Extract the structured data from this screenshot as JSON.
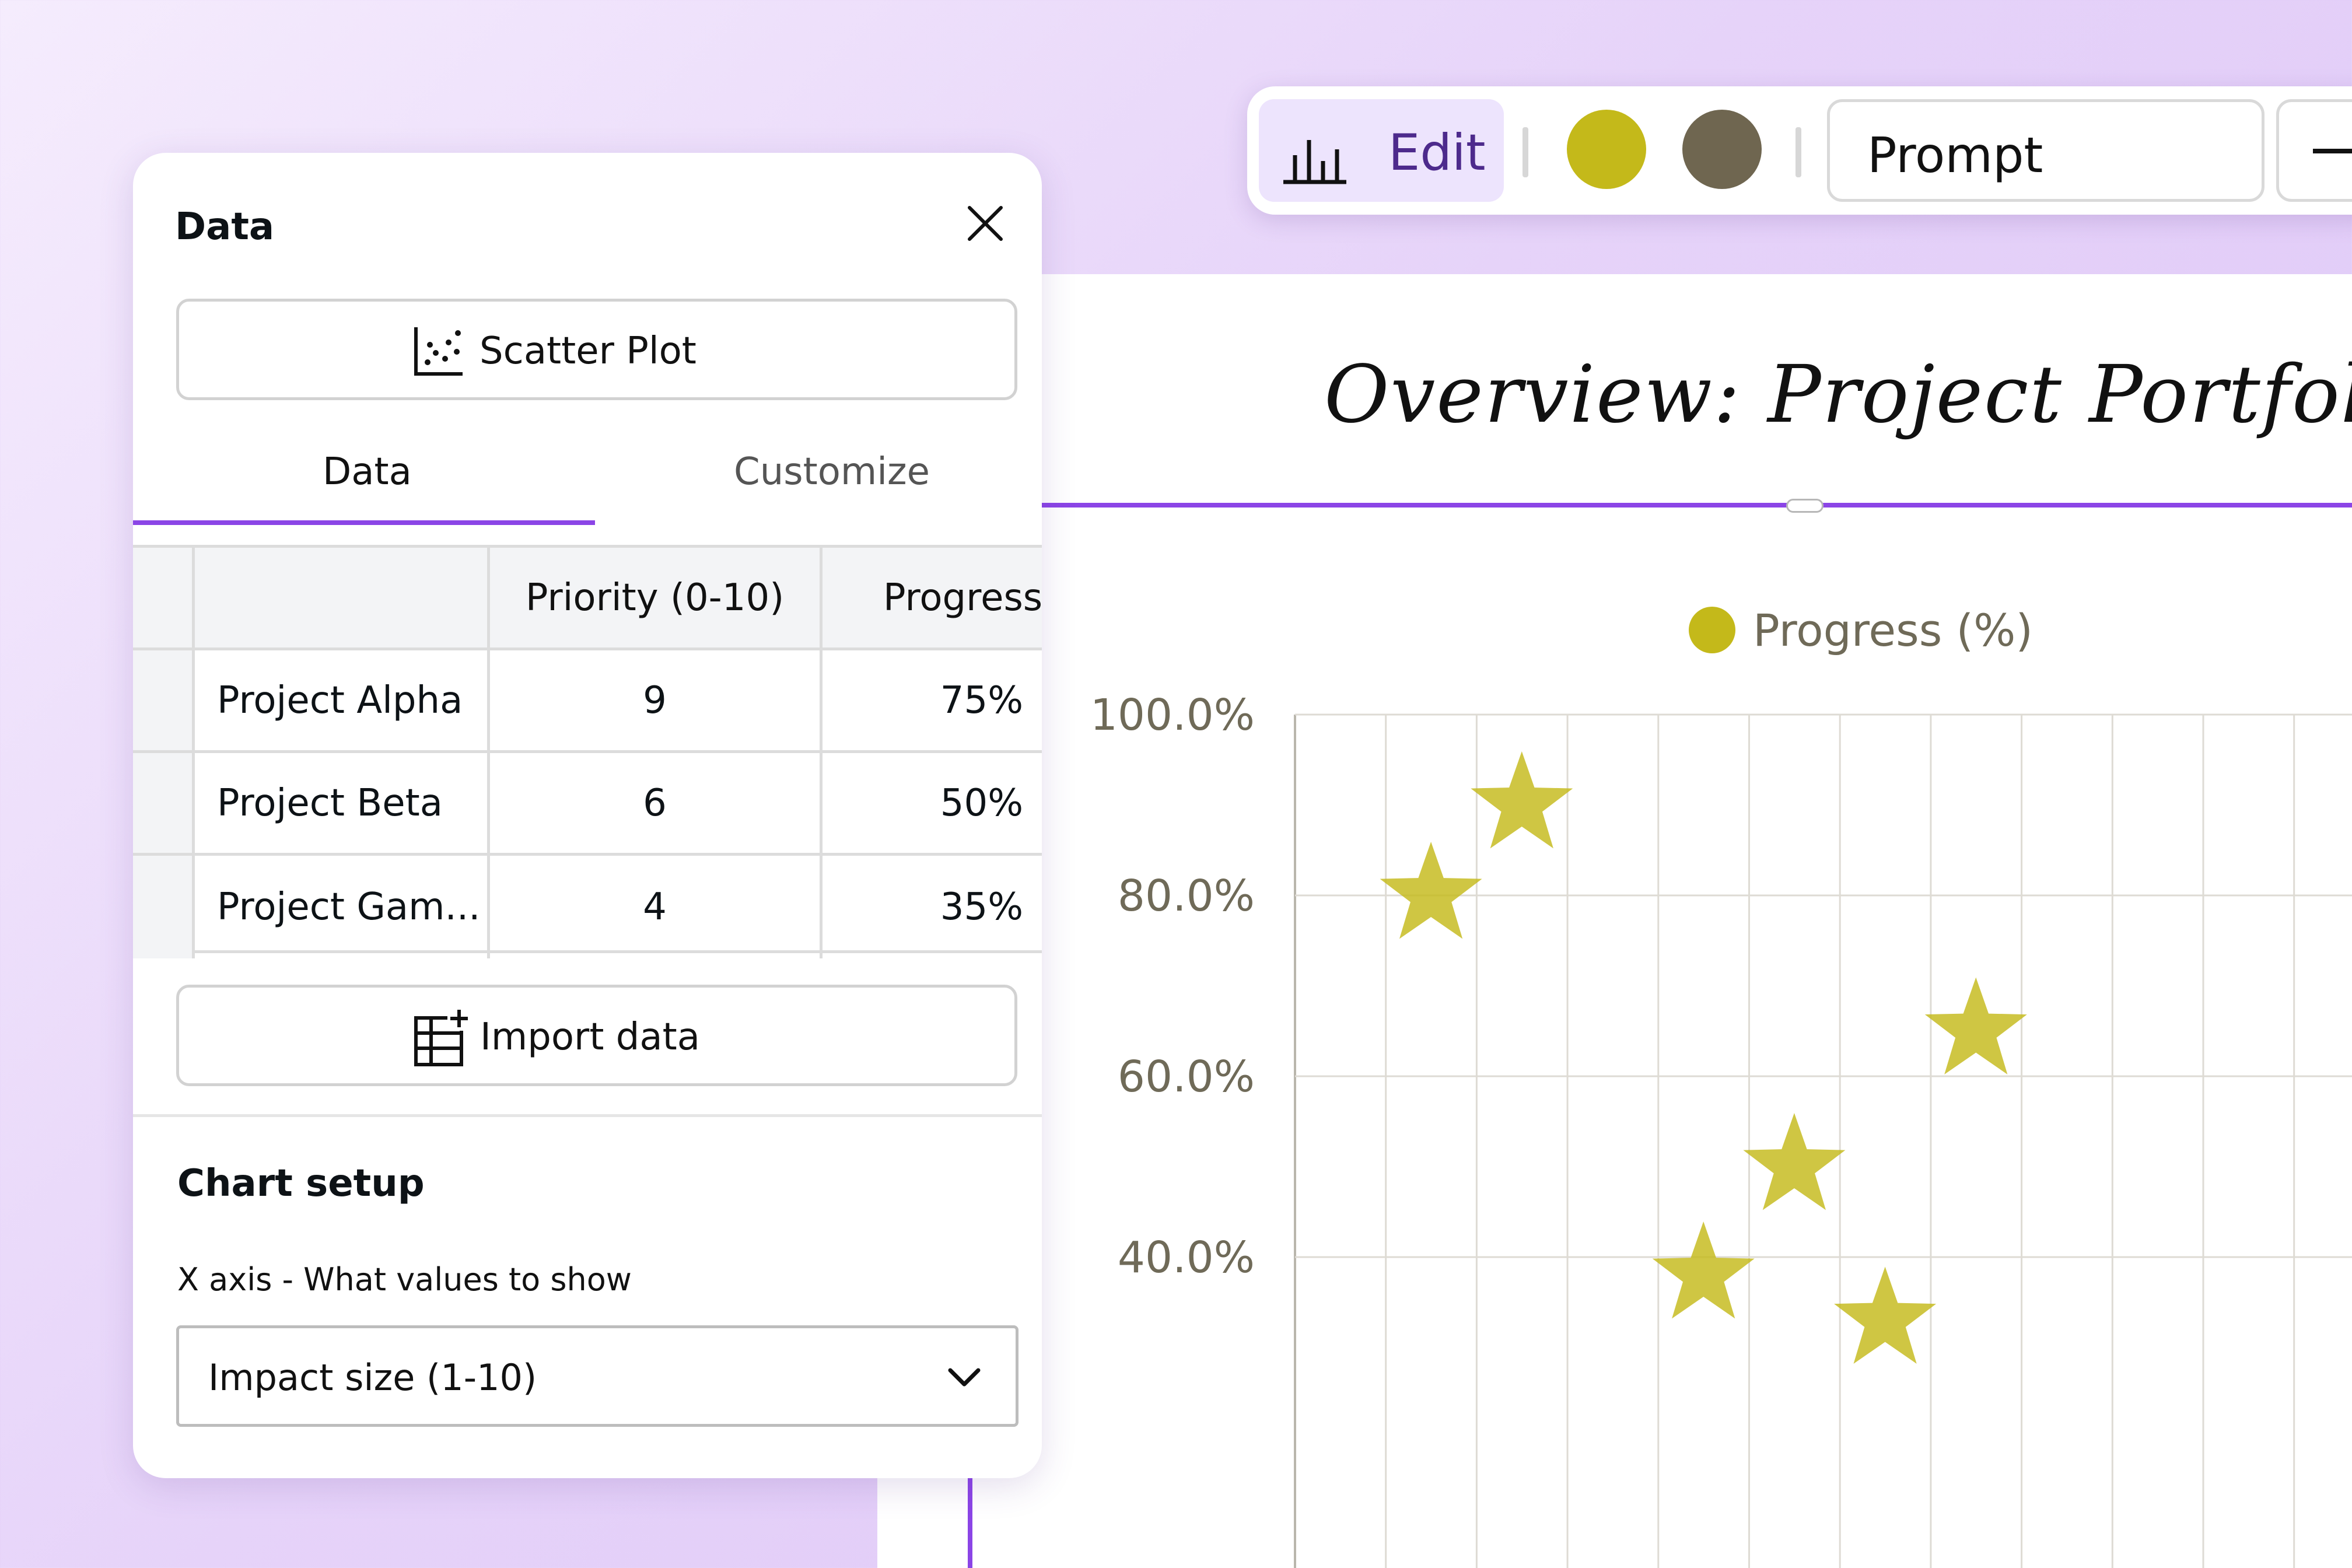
{
  "toolbar": {
    "edit_label": "Edit",
    "swatches": [
      "#c4b91a",
      "#6f6650"
    ],
    "prompt_label": "Prompt"
  },
  "panel": {
    "title": "Data",
    "chart_type_label": "Scatter Plot",
    "tabs": [
      {
        "label": "Data",
        "active": true
      },
      {
        "label": "Customize",
        "active": false
      }
    ],
    "table": {
      "headers": [
        "",
        "Priority (0-10)",
        "Progress"
      ],
      "rows": [
        {
          "name": "Project Alpha",
          "priority": "9",
          "progress": "75%"
        },
        {
          "name": "Project Beta",
          "priority": "6",
          "progress": "50%"
        },
        {
          "name": "Project Gam...",
          "priority": "4",
          "progress": "35%"
        }
      ]
    },
    "import_label": "Import data",
    "setup_title": "Chart setup",
    "x_axis_label": "X axis - What values to show",
    "x_axis_value": "Impact size (1-10)"
  },
  "canvas": {
    "title": "Overview: Project Portfolio",
    "legend_label": "Progress (%)"
  },
  "chart_data": {
    "type": "scatter",
    "title": "Overview: Project Portfolio",
    "series": [
      {
        "name": "Progress (%)",
        "color": "#c4b91a",
        "marker": "star",
        "points": [
          {
            "x": 1.5,
            "y": 80
          },
          {
            "x": 2.0,
            "y": 90
          },
          {
            "x": 3.0,
            "y": 38
          },
          {
            "x": 3.5,
            "y": 50
          },
          {
            "x": 4.0,
            "y": 33
          },
          {
            "x": 4.5,
            "y": 65
          }
        ]
      }
    ],
    "yticks": [
      "100.0%",
      "80.0%",
      "60.0%",
      "40.0%"
    ],
    "ylim": [
      30,
      100
    ],
    "xlim": [
      0.5,
      5.0
    ],
    "grid": true,
    "legend_position": "top"
  }
}
